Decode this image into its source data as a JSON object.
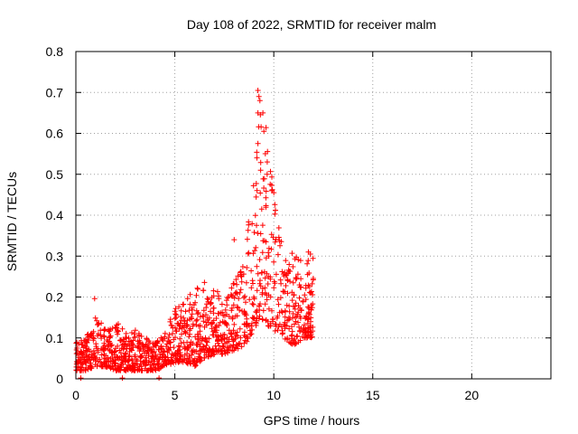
{
  "chart_data": {
    "type": "scatter",
    "title": "Day 108 of 2022, SRMTID for receiver malm",
    "xlabel": "GPS time / hours",
    "ylabel": "SRMTID / TECUs",
    "xlim": [
      0,
      24
    ],
    "ylim": [
      0,
      0.8
    ],
    "xticks": [
      0,
      5,
      10,
      15,
      20
    ],
    "xtick_labels": [
      "0",
      "5",
      "10",
      "15",
      "20"
    ],
    "yticks": [
      0,
      0.1,
      0.2,
      0.3,
      0.4,
      0.5,
      0.6,
      0.7,
      0.8
    ],
    "ytick_labels": [
      "0",
      "0.1",
      "0.2",
      "0.3",
      "0.4",
      "0.5",
      "0.6",
      "0.7",
      "0.8"
    ],
    "grid": true,
    "marker": "+",
    "marker_color": "#ff0000",
    "series": [
      {
        "name": "SRMTID",
        "envelope": [
          {
            "t": 0.0,
            "low": 0.02,
            "high": 0.09
          },
          {
            "t": 0.5,
            "low": 0.02,
            "high": 0.1
          },
          {
            "t": 1.0,
            "low": 0.03,
            "high": 0.16
          },
          {
            "t": 1.5,
            "low": 0.03,
            "high": 0.13
          },
          {
            "t": 2.0,
            "low": 0.02,
            "high": 0.14
          },
          {
            "t": 2.5,
            "low": 0.02,
            "high": 0.12
          },
          {
            "t": 3.0,
            "low": 0.02,
            "high": 0.12
          },
          {
            "t": 3.5,
            "low": 0.02,
            "high": 0.1
          },
          {
            "t": 4.0,
            "low": 0.02,
            "high": 0.09
          },
          {
            "t": 4.5,
            "low": 0.03,
            "high": 0.12
          },
          {
            "t": 5.0,
            "low": 0.04,
            "high": 0.17
          },
          {
            "t": 5.5,
            "low": 0.04,
            "high": 0.19
          },
          {
            "t": 6.0,
            "low": 0.03,
            "high": 0.22
          },
          {
            "t": 6.5,
            "low": 0.05,
            "high": 0.24
          },
          {
            "t": 7.0,
            "low": 0.06,
            "high": 0.22
          },
          {
            "t": 7.5,
            "low": 0.06,
            "high": 0.2
          },
          {
            "t": 8.0,
            "low": 0.07,
            "high": 0.24
          },
          {
            "t": 8.5,
            "low": 0.08,
            "high": 0.3
          },
          {
            "t": 9.0,
            "low": 0.12,
            "high": 0.5
          },
          {
            "t": 9.3,
            "low": 0.15,
            "high": 0.7
          },
          {
            "t": 9.7,
            "low": 0.13,
            "high": 0.6
          },
          {
            "t": 10.0,
            "low": 0.12,
            "high": 0.45
          },
          {
            "t": 10.5,
            "low": 0.1,
            "high": 0.3
          },
          {
            "t": 11.0,
            "low": 0.08,
            "high": 0.32
          },
          {
            "t": 11.5,
            "low": 0.1,
            "high": 0.28
          },
          {
            "t": 12.0,
            "low": 0.1,
            "high": 0.3
          }
        ],
        "points": [
          {
            "t": 9.2,
            "v": 0.705
          },
          {
            "t": 9.25,
            "v": 0.69
          },
          {
            "t": 9.3,
            "v": 0.68
          },
          {
            "t": 9.2,
            "v": 0.65
          },
          {
            "t": 9.45,
            "v": 0.65
          },
          {
            "t": 9.5,
            "v": 0.605
          },
          {
            "t": 9.2,
            "v": 0.575
          },
          {
            "t": 9.15,
            "v": 0.54
          },
          {
            "t": 9.9,
            "v": 0.46
          },
          {
            "t": 10.0,
            "v": 0.455
          },
          {
            "t": 0.95,
            "v": 0.196
          },
          {
            "t": 0.25,
            "v": 0.002
          },
          {
            "t": 2.35,
            "v": 0.002
          },
          {
            "t": 4.2,
            "v": 0.002
          },
          {
            "t": 8.0,
            "v": 0.34
          },
          {
            "t": 11.75,
            "v": 0.31
          },
          {
            "t": 11.85,
            "v": 0.305
          }
        ]
      }
    ]
  }
}
